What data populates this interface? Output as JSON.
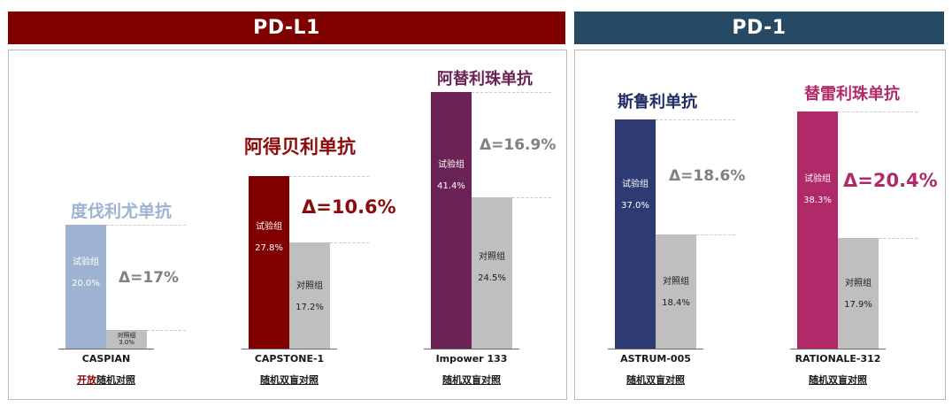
{
  "groups": [
    {
      "label": "PD-L1",
      "color": "#800000"
    },
    {
      "label": "PD-1",
      "color": "#264a63"
    }
  ],
  "labels": {
    "treatment": "试验组",
    "control": "对照组"
  },
  "chart_data": {
    "type": "bar",
    "title": "",
    "ylabel": "",
    "ylim": [
      0,
      45
    ],
    "series_names": [
      "试验组",
      "对照组"
    ],
    "trials": [
      {
        "group": "PD-L1",
        "drug": "度伐利尤单抗",
        "trial": "CASPIAN",
        "design_highlight": "开放",
        "design_rest": "随机对照",
        "treatment": 20.0,
        "control": 3.0,
        "treatment_label": "20.0%",
        "control_label": "3.0%",
        "delta_label": "Δ=17%",
        "color": "#9eb3d1",
        "drug_color": "#9eb3d1",
        "delta_color": "#808080"
      },
      {
        "group": "PD-L1",
        "drug": "阿得贝利单抗",
        "trial": "CAPSTONE-1",
        "design_highlight": "",
        "design_rest": "随机双盲对照",
        "treatment": 27.8,
        "control": 17.2,
        "treatment_label": "27.8%",
        "control_label": "17.2%",
        "delta_label": "Δ=10.6%",
        "color": "#800000",
        "drug_color": "#8b0a0a",
        "delta_color": "#8b0a0a"
      },
      {
        "group": "PD-L1",
        "drug": "阿替利珠单抗",
        "trial": "Impower 133",
        "design_highlight": "",
        "design_rest": "随机双盲对照",
        "treatment": 41.4,
        "control": 24.5,
        "treatment_label": "41.4%",
        "control_label": "24.5%",
        "delta_label": "Δ=16.9%",
        "color": "#6b2355",
        "drug_color": "#6b2355",
        "delta_color": "#808080"
      },
      {
        "group": "PD-1",
        "drug": "斯鲁利单抗",
        "trial": "ASTRUM-005",
        "design_highlight": "",
        "design_rest": "随机双盲对照",
        "treatment": 37.0,
        "control": 18.4,
        "treatment_label": "37.0%",
        "control_label": "18.4%",
        "delta_label": "Δ=18.6%",
        "color": "#2d3b72",
        "drug_color": "#1f2c63",
        "delta_color": "#808080"
      },
      {
        "group": "PD-1",
        "drug": "替雷利珠单抗",
        "trial": "RATIONALE-312",
        "design_highlight": "",
        "design_rest": "随机双盲对照",
        "treatment": 38.3,
        "control": 17.9,
        "treatment_label": "38.3%",
        "control_label": "17.9%",
        "delta_label": "Δ=20.4%",
        "color": "#b02a6a",
        "drug_color": "#b02a6a",
        "delta_color": "#b02a6a"
      }
    ]
  }
}
